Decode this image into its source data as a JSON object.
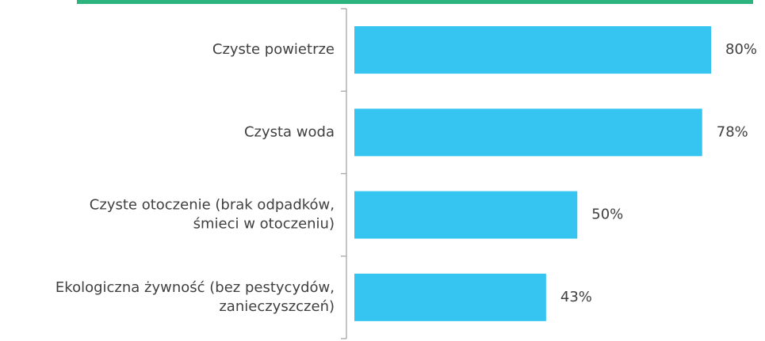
{
  "chart_data": {
    "type": "hbar",
    "categories": [
      [
        "Czyste powietrze"
      ],
      [
        "Czysta woda"
      ],
      [
        "Czyste otoczenie (brak odpadków,",
        "śmieci w otoczeniu)"
      ],
      [
        "Ekologiczna żywność (bez pestycydów,",
        "zanieczyszczeń)"
      ]
    ],
    "values": [
      80,
      78,
      50,
      43
    ],
    "value_labels": [
      "80%",
      "78%",
      "50%",
      "43%"
    ],
    "color": "#35c5f0"
  }
}
